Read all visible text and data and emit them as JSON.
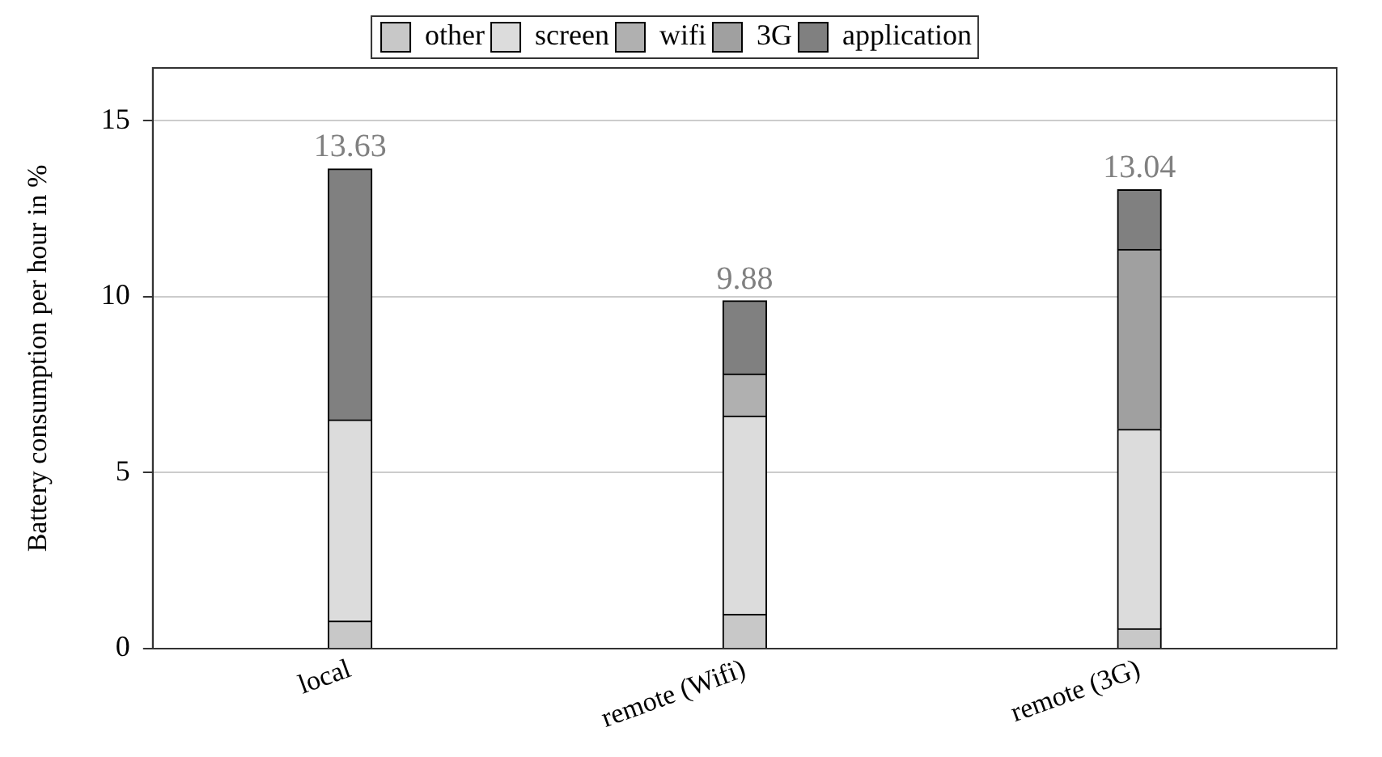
{
  "chart_data": {
    "type": "bar",
    "stacked": true,
    "ylabel": "Battery consumption per hour in %",
    "categories": [
      "local",
      "remote (Wifi)",
      "remote (3G)"
    ],
    "series": [
      {
        "name": "other",
        "color": "#c8c8c8",
        "values": [
          0.78,
          0.97,
          0.56
        ]
      },
      {
        "name": "screen",
        "color": "#dcdcdc",
        "values": [
          5.72,
          5.64,
          5.67
        ]
      },
      {
        "name": "wifi",
        "color": "#b0b0b0",
        "values": [
          0,
          1.19,
          0
        ]
      },
      {
        "name": "3G",
        "color": "#a0a0a0",
        "values": [
          0,
          0,
          5.11
        ]
      },
      {
        "name": "application",
        "color": "#808080",
        "values": [
          7.13,
          2.08,
          1.7
        ]
      }
    ],
    "totals": [
      "13.63",
      "9.88",
      "13.04"
    ],
    "ylim": [
      0,
      16.5
    ],
    "yticks": [
      0,
      5,
      10,
      15
    ],
    "grid": "y",
    "legend": "top"
  }
}
